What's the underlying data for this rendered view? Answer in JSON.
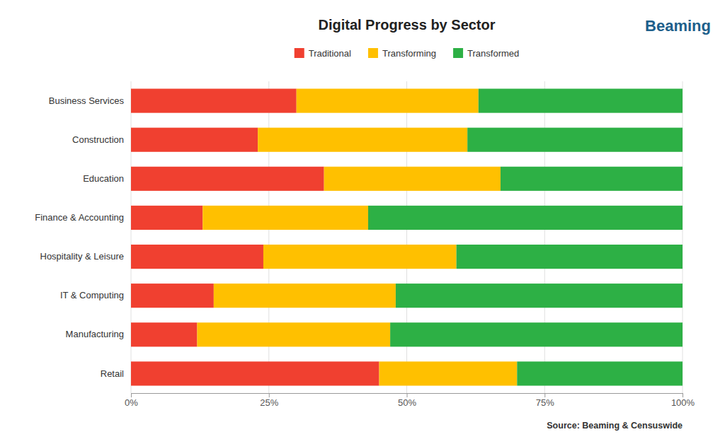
{
  "chart_data": {
    "type": "bar",
    "title": "Digital Progress by Sector",
    "orientation": "horizontal",
    "stacked": true,
    "categories": [
      "Retail",
      "Manufacturing",
      "IT & Computing",
      "Hospitality & Leisure",
      "Finance & Accounting",
      "Education",
      "Construction",
      "Business Services"
    ],
    "series": [
      {
        "name": "Traditional",
        "color": "#f04030",
        "values": [
          45,
          12,
          15,
          24,
          13,
          35,
          23,
          30
        ]
      },
      {
        "name": "Transforming",
        "color": "#ffc000",
        "values": [
          25,
          35,
          33,
          35,
          30,
          32,
          38,
          33
        ]
      },
      {
        "name": "Transformed",
        "color": "#2db045",
        "values": [
          30,
          53,
          52,
          41,
          57,
          33,
          39,
          37
        ]
      }
    ],
    "xlim": [
      0,
      100
    ],
    "xticks": [
      {
        "value": 0,
        "label": "0%"
      },
      {
        "value": 25,
        "label": "25%"
      },
      {
        "value": 50,
        "label": "50%"
      },
      {
        "value": 75,
        "label": "75%"
      },
      {
        "value": 100,
        "label": "100%"
      }
    ],
    "grid": true,
    "legend": "top",
    "annotations": [
      "Source: Beaming & Censuswide",
      "Beaming"
    ]
  }
}
